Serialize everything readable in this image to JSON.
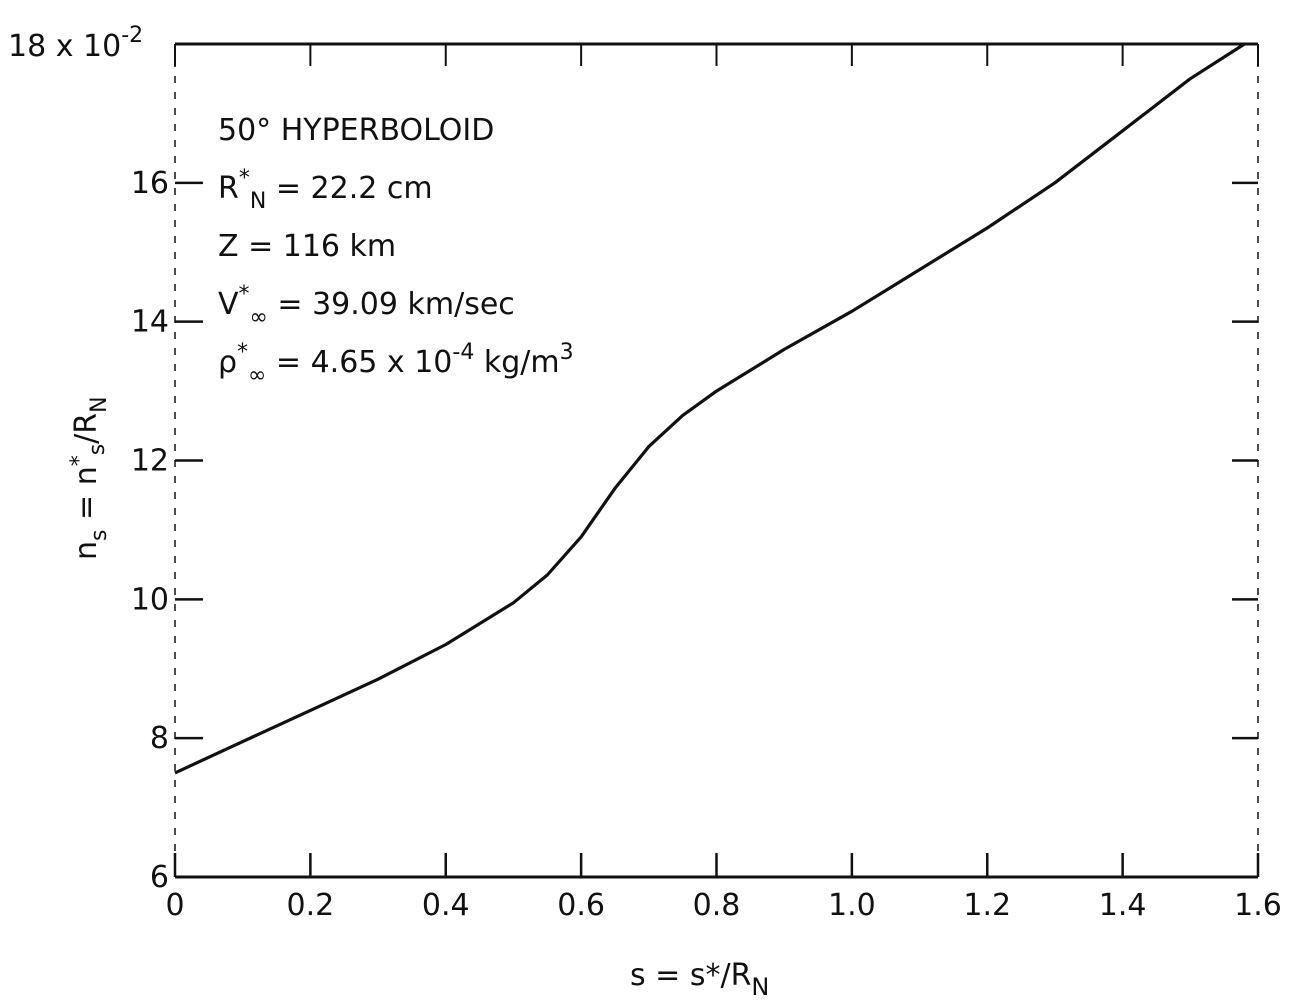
{
  "chart_data": {
    "type": "line",
    "xlabel": "s = s*/R",
    "xlabel_sub": "N",
    "ylabel": "n",
    "ylabel_sub": "s",
    "ylabel_tail": " = n",
    "ylabel_tail_sup": "*",
    "ylabel_tail_sub": "s",
    "ylabel_tail2": "/R",
    "ylabel_tail2_sub": "N",
    "y_multiplier": "18 x 10",
    "y_multiplier_exp": "-2",
    "xlim": [
      0,
      1.6
    ],
    "ylim": [
      6,
      18
    ],
    "x_ticks": [
      0,
      0.2,
      0.4,
      0.6,
      0.8,
      1.0,
      1.2,
      1.4,
      1.6
    ],
    "x_tick_labels": [
      "0",
      "0.2",
      "0.4",
      "0.6",
      "0.8",
      "1.0",
      "1.2",
      "1.4",
      "1.6"
    ],
    "y_ticks": [
      6,
      8,
      10,
      12,
      14,
      16
    ],
    "y_tick_labels": [
      "6",
      "8",
      "10",
      "12",
      "14",
      "16"
    ],
    "grid": false,
    "series": [
      {
        "x": [
          0,
          0.1,
          0.2,
          0.3,
          0.4,
          0.5,
          0.55,
          0.6,
          0.65,
          0.7,
          0.75,
          0.8,
          0.9,
          1.0,
          1.1,
          1.2,
          1.3,
          1.4,
          1.5,
          1.58
        ],
        "y": [
          7.5,
          7.95,
          8.4,
          8.85,
          9.35,
          9.95,
          10.35,
          10.9,
          11.6,
          12.2,
          12.65,
          13.0,
          13.6,
          14.15,
          14.75,
          15.35,
          16.0,
          16.75,
          17.5,
          18.0
        ]
      }
    ],
    "annotations": [
      {
        "parts": [
          {
            "t": "50° HYPERBOLOID"
          }
        ]
      },
      {
        "parts": [
          {
            "t": "R"
          },
          {
            "t": "*",
            "sup": true
          },
          {
            "t": "N",
            "sub": true
          },
          {
            "t": " = 22.2 cm"
          }
        ]
      },
      {
        "parts": [
          {
            "t": " Z = 116 km"
          }
        ]
      },
      {
        "parts": [
          {
            "t": "V"
          },
          {
            "t": "*",
            "sup": true
          },
          {
            "t": "∞",
            "sub": true
          },
          {
            "t": " = 39.09 km/sec"
          }
        ]
      },
      {
        "parts": [
          {
            "t": "ρ"
          },
          {
            "t": "*",
            "sup": true
          },
          {
            "t": "∞",
            "sub": true
          },
          {
            "t": " = 4.65 x 10"
          },
          {
            "t": "-4",
            "sup": true
          },
          {
            "t": " kg/m"
          },
          {
            "t": "3",
            "sup": true
          }
        ]
      }
    ]
  }
}
